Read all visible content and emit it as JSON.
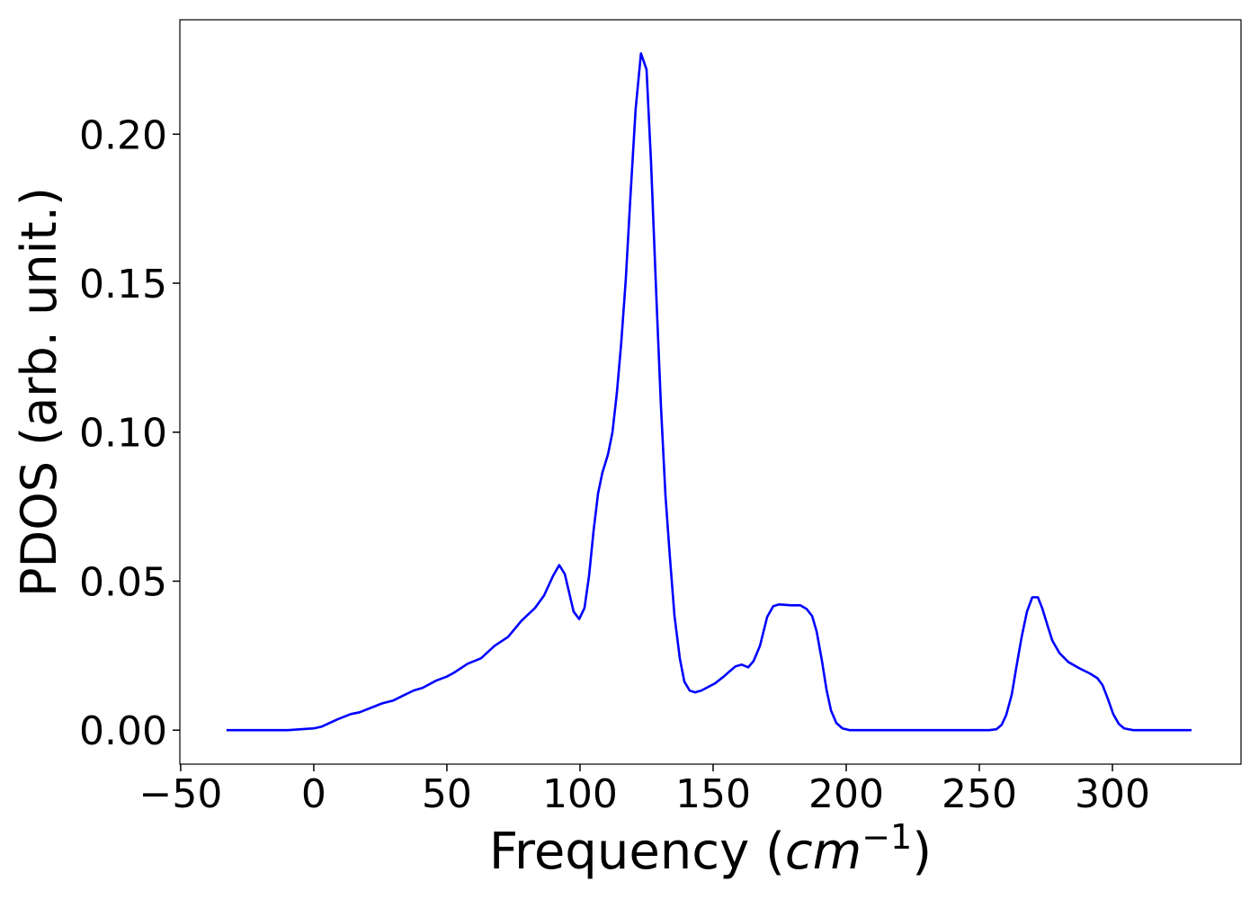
{
  "chart_data": {
    "type": "line",
    "xlabel": [
      "Frequency (",
      "cm",
      "−1",
      ")"
    ],
    "ylabel": "PDOS (arb. unit.)",
    "color": "#0000ff",
    "x": [
      -32.8,
      -9.8,
      0,
      3,
      8.8,
      13.9,
      17.2,
      22.3,
      25.7,
      29.7,
      33.1,
      37.5,
      40.9,
      45.9,
      50,
      52.7,
      57.8,
      62.8,
      67.9,
      73,
      78,
      83.1,
      86.5,
      89.9,
      92.2,
      94.3,
      97.6,
      99.7,
      101.7,
      103.4,
      105.1,
      106.8,
      108.4,
      110.5,
      112.2,
      113.9,
      115.5,
      117.2,
      118.9,
      120.9,
      122.9,
      125,
      126.7,
      128.7,
      130.4,
      132.1,
      133.8,
      135.5,
      137.5,
      139.2,
      141.2,
      143.2,
      145.6,
      150.7,
      154,
      156.4,
      158.4,
      160.8,
      163.2,
      165.2,
      167.6,
      170.3,
      172.6,
      174.7,
      179.4,
      182.8,
      185.1,
      187.2,
      188.9,
      190.9,
      192.6,
      194.3,
      196.3,
      198.6,
      201.4,
      253.7,
      256.4,
      258.4,
      260.1,
      262.2,
      263.9,
      265.9,
      267.9,
      269.9,
      272,
      273.6,
      275.7,
      277.4,
      280.1,
      283.4,
      287.5,
      291.6,
      294.3,
      296.3,
      298.3,
      300.3,
      302.4,
      304.4,
      307.8,
      329.7
    ],
    "values": [
      0,
      0,
      0.0006,
      0.0012,
      0.0036,
      0.0054,
      0.006,
      0.0078,
      0.009,
      0.0099,
      0.0114,
      0.0133,
      0.0142,
      0.0166,
      0.018,
      0.0193,
      0.0223,
      0.0241,
      0.0283,
      0.0313,
      0.0367,
      0.041,
      0.0452,
      0.0518,
      0.0554,
      0.0524,
      0.0398,
      0.0373,
      0.041,
      0.0518,
      0.0669,
      0.0795,
      0.0864,
      0.0925,
      0.1,
      0.1136,
      0.1301,
      0.1512,
      0.1783,
      0.2084,
      0.2271,
      0.2217,
      0.1904,
      0.1452,
      0.109,
      0.0789,
      0.0578,
      0.0383,
      0.0241,
      0.0163,
      0.0133,
      0.0127,
      0.0133,
      0.0157,
      0.018,
      0.0199,
      0.0214,
      0.022,
      0.0211,
      0.0232,
      0.0283,
      0.038,
      0.0416,
      0.0422,
      0.0419,
      0.0419,
      0.0407,
      0.0383,
      0.0331,
      0.0232,
      0.0136,
      0.0066,
      0.0024,
      0.0006,
      0,
      0,
      0.0003,
      0.0018,
      0.0051,
      0.012,
      0.0211,
      0.0313,
      0.0398,
      0.0446,
      0.0446,
      0.041,
      0.0349,
      0.0301,
      0.0259,
      0.0229,
      0.0208,
      0.019,
      0.0175,
      0.0151,
      0.0105,
      0.0054,
      0.0021,
      0.0006,
      0,
      0
    ],
    "xlim": [
      -50.3,
      348.3
    ],
    "ylim": [
      -0.0114,
      0.2384
    ],
    "xticks": [
      {
        "value": -50,
        "label": "−50"
      },
      0,
      50,
      100,
      150,
      200,
      250,
      300
    ],
    "yticks": [
      {
        "value": 0,
        "label": "0.00"
      },
      {
        "value": 0.05,
        "label": "0.05"
      },
      {
        "value": 0.1,
        "label": "0.10"
      },
      {
        "value": 0.15,
        "label": "0.15"
      },
      {
        "value": 0.2,
        "label": "0.20"
      }
    ],
    "grid": false
  }
}
